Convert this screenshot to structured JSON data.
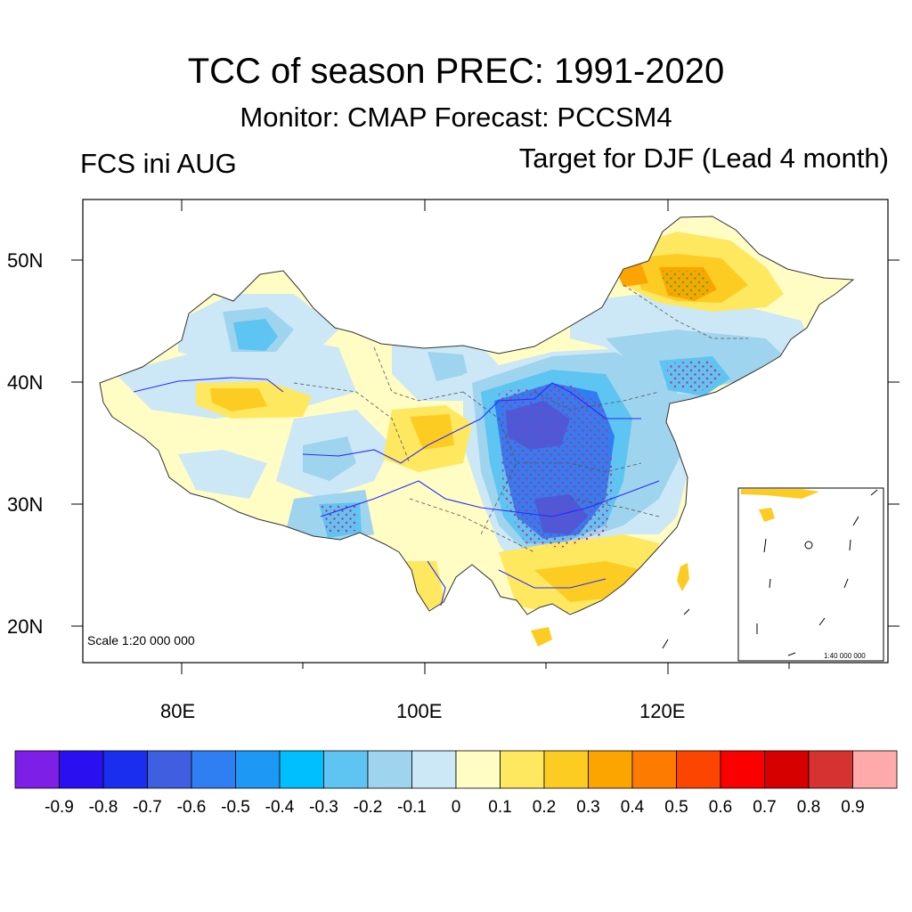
{
  "title": "TCC of season PREC: 1991-2020",
  "subtitle": "Monitor: CMAP   Forecast: PCCSM4",
  "left_label": "FCS ini AUG",
  "right_label": "Target for DJF (Lead 4 month)",
  "lat_labels": [
    "50N",
    "40N",
    "30N",
    "20N"
  ],
  "lon_labels": [
    "80E",
    "100E",
    "120E"
  ],
  "scale_main": "Scale 1:20 000 000",
  "scale_inset": "1:40 000 000",
  "colorbar": {
    "colors": [
      "#7d1fe6",
      "#2a10f0",
      "#1a2ef0",
      "#3f5fe0",
      "#2f7ef2",
      "#1e98f5",
      "#00bfff",
      "#5ec4f2",
      "#9fd4ee",
      "#cce8f6",
      "#fffcc4",
      "#fde860",
      "#fdcc23",
      "#fca500",
      "#fc7b00",
      "#fc4500",
      "#fb0000",
      "#d70000",
      "#d73232",
      "#ffaaaa"
    ],
    "labels": [
      "-0.9",
      "-0.8",
      "-0.7",
      "-0.6",
      "-0.5",
      "-0.4",
      "-0.3",
      "-0.2",
      "-0.1",
      "0",
      "0.1",
      "0.2",
      "0.3",
      "0.4",
      "0.5",
      "0.6",
      "0.7",
      "0.8",
      "0.9"
    ]
  }
}
